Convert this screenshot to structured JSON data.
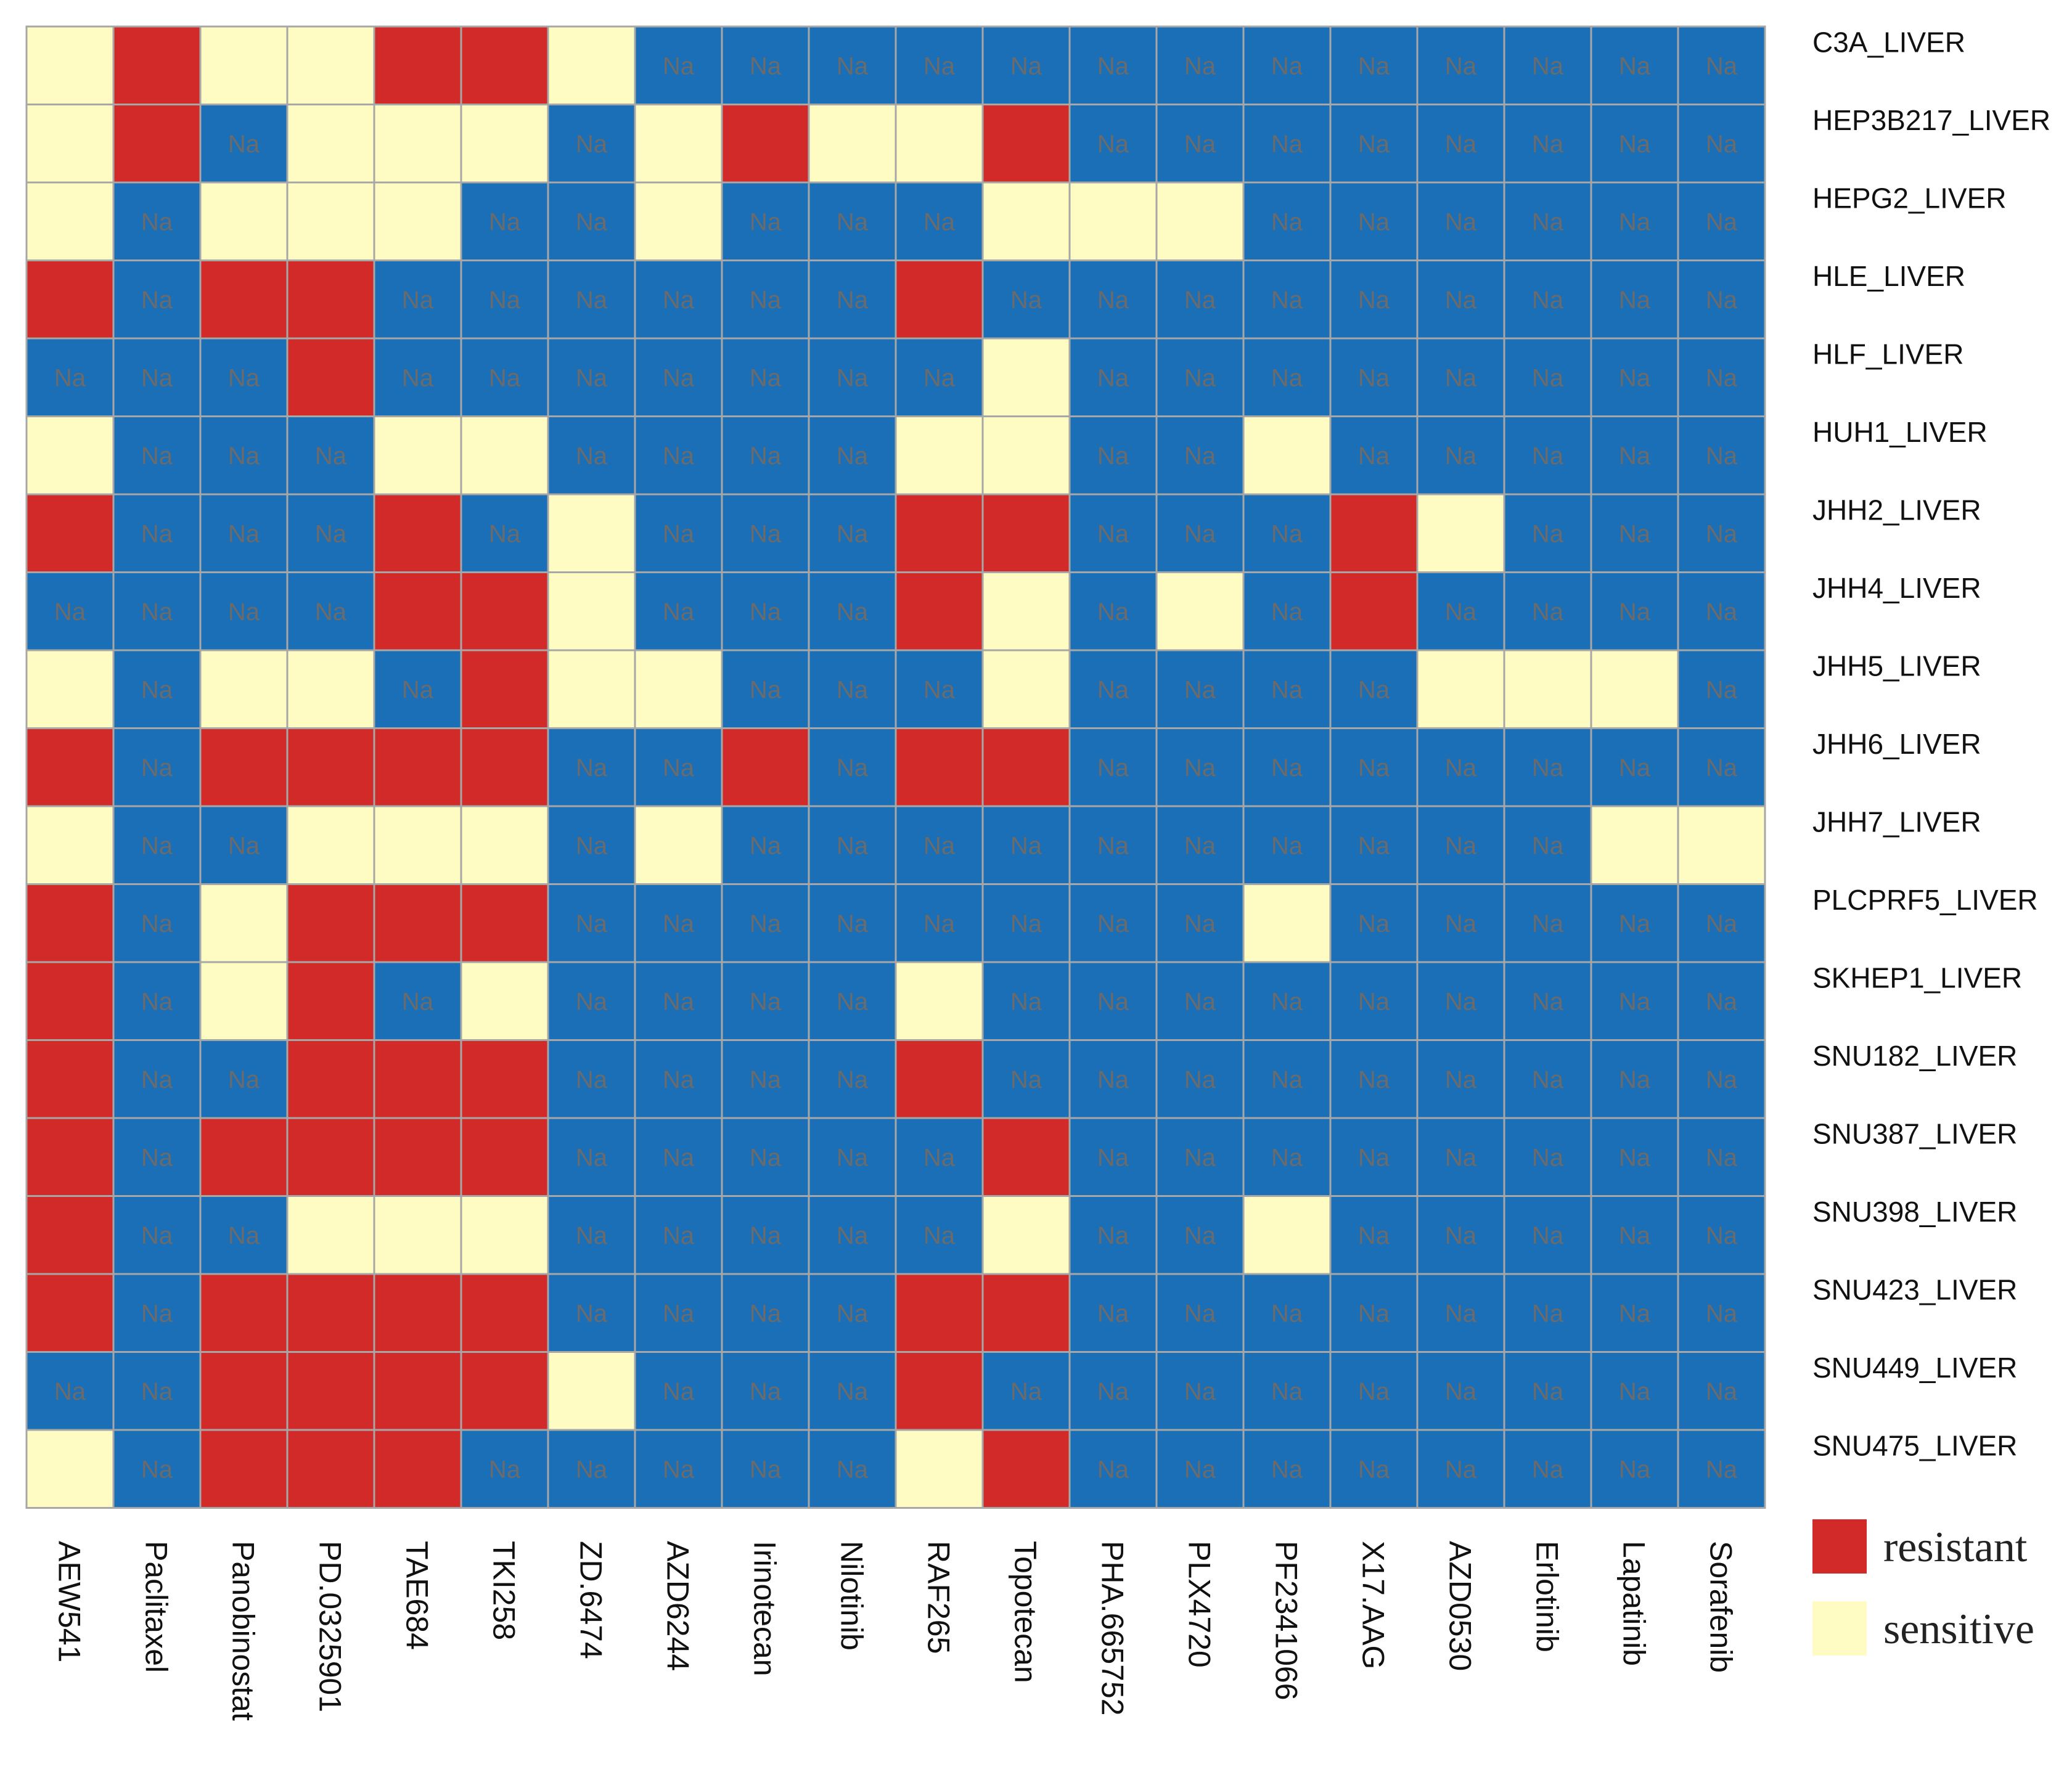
{
  "chart_data": {
    "type": "heatmap",
    "title": "",
    "missing_label": "Na",
    "rows": [
      "C3A_LIVER",
      "HEP3B217_LIVER",
      "HEPG2_LIVER",
      "HLE_LIVER",
      "HLF_LIVER",
      "HUH1_LIVER",
      "JHH2_LIVER",
      "JHH4_LIVER",
      "JHH5_LIVER",
      "JHH6_LIVER",
      "JHH7_LIVER",
      "PLCPRF5_LIVER",
      "SKHEP1_LIVER",
      "SNU182_LIVER",
      "SNU387_LIVER",
      "SNU398_LIVER",
      "SNU423_LIVER",
      "SNU449_LIVER",
      "SNU475_LIVER"
    ],
    "columns": [
      "AEW541",
      "Paclitaxel",
      "Panobinostat",
      "PD.0325901",
      "TAE684",
      "TKI258",
      "ZD.6474",
      "AZD6244",
      "Irinotecan",
      "Nilotinib",
      "RAF265",
      "Topotecan",
      "PHA.665752",
      "PLX4720",
      "PF2341066",
      "X17.AAG",
      "AZD0530",
      "Erlotinib",
      "Lapatinib",
      "Sorafenib"
    ],
    "matrix": [
      [
        "S",
        "R",
        "S",
        "S",
        "R",
        "R",
        "S",
        "N",
        "N",
        "N",
        "N",
        "N",
        "N",
        "N",
        "N",
        "N",
        "N",
        "N",
        "N",
        "N"
      ],
      [
        "S",
        "R",
        "N",
        "S",
        "S",
        "S",
        "N",
        "S",
        "R",
        "S",
        "S",
        "R",
        "N",
        "N",
        "N",
        "N",
        "N",
        "N",
        "N",
        "N"
      ],
      [
        "S",
        "N",
        "S",
        "S",
        "S",
        "N",
        "N",
        "S",
        "N",
        "N",
        "N",
        "S",
        "S",
        "S",
        "N",
        "N",
        "N",
        "N",
        "N",
        "N"
      ],
      [
        "R",
        "N",
        "R",
        "R",
        "N",
        "N",
        "N",
        "N",
        "N",
        "N",
        "R",
        "N",
        "N",
        "N",
        "N",
        "N",
        "N",
        "N",
        "N",
        "N"
      ],
      [
        "N",
        "N",
        "N",
        "R",
        "N",
        "N",
        "N",
        "N",
        "N",
        "N",
        "N",
        "S",
        "N",
        "N",
        "N",
        "N",
        "N",
        "N",
        "N",
        "N"
      ],
      [
        "S",
        "N",
        "N",
        "N",
        "S",
        "S",
        "N",
        "N",
        "N",
        "N",
        "S",
        "S",
        "N",
        "N",
        "S",
        "N",
        "N",
        "N",
        "N",
        "N"
      ],
      [
        "R",
        "N",
        "N",
        "N",
        "R",
        "N",
        "S",
        "N",
        "N",
        "N",
        "R",
        "R",
        "N",
        "N",
        "N",
        "R",
        "S",
        "N",
        "N",
        "N"
      ],
      [
        "N",
        "N",
        "N",
        "N",
        "R",
        "R",
        "S",
        "N",
        "N",
        "N",
        "R",
        "S",
        "N",
        "S",
        "N",
        "R",
        "N",
        "N",
        "N",
        "N"
      ],
      [
        "S",
        "N",
        "S",
        "S",
        "N",
        "R",
        "S",
        "S",
        "N",
        "N",
        "N",
        "S",
        "N",
        "N",
        "N",
        "N",
        "S",
        "S",
        "S",
        "N"
      ],
      [
        "R",
        "N",
        "R",
        "R",
        "R",
        "R",
        "N",
        "N",
        "R",
        "N",
        "R",
        "R",
        "N",
        "N",
        "N",
        "N",
        "N",
        "N",
        "N",
        "N"
      ],
      [
        "S",
        "N",
        "N",
        "S",
        "S",
        "S",
        "N",
        "S",
        "N",
        "N",
        "N",
        "N",
        "N",
        "N",
        "N",
        "N",
        "N",
        "N",
        "S",
        "S"
      ],
      [
        "R",
        "N",
        "S",
        "R",
        "R",
        "R",
        "N",
        "N",
        "N",
        "N",
        "N",
        "N",
        "N",
        "N",
        "S",
        "N",
        "N",
        "N",
        "N",
        "N"
      ],
      [
        "R",
        "N",
        "S",
        "R",
        "N",
        "S",
        "N",
        "N",
        "N",
        "N",
        "S",
        "N",
        "N",
        "N",
        "N",
        "N",
        "N",
        "N",
        "N",
        "N"
      ],
      [
        "R",
        "N",
        "N",
        "R",
        "R",
        "R",
        "N",
        "N",
        "N",
        "N",
        "R",
        "N",
        "N",
        "N",
        "N",
        "N",
        "N",
        "N",
        "N",
        "N"
      ],
      [
        "R",
        "N",
        "R",
        "R",
        "R",
        "R",
        "N",
        "N",
        "N",
        "N",
        "N",
        "R",
        "N",
        "N",
        "N",
        "N",
        "N",
        "N",
        "N",
        "N"
      ],
      [
        "R",
        "N",
        "N",
        "S",
        "S",
        "S",
        "N",
        "N",
        "N",
        "N",
        "N",
        "S",
        "N",
        "N",
        "S",
        "N",
        "N",
        "N",
        "N",
        "N"
      ],
      [
        "R",
        "N",
        "R",
        "R",
        "R",
        "R",
        "N",
        "N",
        "N",
        "N",
        "R",
        "R",
        "N",
        "N",
        "N",
        "N",
        "N",
        "N",
        "N",
        "N"
      ],
      [
        "N",
        "N",
        "R",
        "R",
        "R",
        "R",
        "S",
        "N",
        "N",
        "N",
        "R",
        "N",
        "N",
        "N",
        "N",
        "N",
        "N",
        "N",
        "N",
        "N"
      ],
      [
        "S",
        "N",
        "R",
        "R",
        "R",
        "N",
        "N",
        "N",
        "N",
        "N",
        "S",
        "R",
        "N",
        "N",
        "N",
        "N",
        "N",
        "N",
        "N",
        "N"
      ]
    ],
    "legend": [
      {
        "code": "R",
        "label": "resistant",
        "color": "#d22a28"
      },
      {
        "code": "S",
        "label": "sensitive",
        "color": "#fefcc2"
      }
    ],
    "missing_color": "#1b6fb6",
    "grid_color": "#a7a7a7",
    "legend_position": "bottom-right"
  }
}
